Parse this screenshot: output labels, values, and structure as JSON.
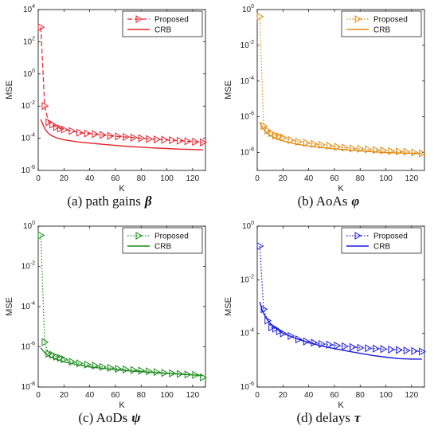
{
  "figure": {
    "captions": [
      {
        "text": "(a) path gains",
        "symbol": "β"
      },
      {
        "text": "(b) AoAs",
        "symbol": "φ"
      },
      {
        "text": "(c) AoDs",
        "symbol": "ψ"
      },
      {
        "text": "(d) delays",
        "symbol": "τ"
      }
    ]
  },
  "chart_data": [
    {
      "type": "line",
      "xlabel": "K",
      "ylabel": "MSE",
      "xlim": [
        0,
        130
      ],
      "ylim": [
        1e-06,
        10000.0
      ],
      "yscale": "log",
      "xticks": [
        "0",
        "20",
        "40",
        "60",
        "80",
        "100",
        "120"
      ],
      "yticks": [
        "10^-6",
        "10^-4",
        "10^-2",
        "10^0",
        "10^2",
        "10^4"
      ],
      "legend_position": "top-right",
      "color": "#e8202a",
      "series": [
        {
          "name": "Proposed",
          "style": "dashed-triangle",
          "x": [
            2,
            5,
            8,
            11,
            14,
            17,
            20,
            26,
            32,
            38,
            44,
            50,
            56,
            62,
            68,
            74,
            80,
            86,
            92,
            98,
            104,
            110,
            116,
            122,
            128
          ],
          "y": [
            800,
            0.01,
            0.001,
            0.0007,
            0.0005,
            0.0004,
            0.00035,
            0.00028,
            0.00022,
            0.0002,
            0.00018,
            0.00016,
            0.00014,
            0.00013,
            0.00012,
            0.00011,
            0.0001,
            9e-05,
            8.5e-05,
            8e-05,
            7.5e-05,
            7e-05,
            6.5e-05,
            6e-05,
            5.5e-05
          ]
        },
        {
          "name": "CRB",
          "style": "solid",
          "x": [
            2,
            4,
            6,
            8,
            10,
            15,
            20,
            30,
            40,
            50,
            60,
            70,
            80,
            90,
            100,
            110,
            120,
            128
          ],
          "y": [
            0.0015,
            0.0006,
            0.0003,
            0.0002,
            0.00015,
            0.0001,
            8e-05,
            6e-05,
            5e-05,
            4.2e-05,
            3.6e-05,
            3.1e-05,
            2.8e-05,
            2.5e-05,
            2.3e-05,
            2.1e-05,
            2e-05,
            1.9e-05
          ]
        }
      ]
    },
    {
      "type": "line",
      "xlabel": "K",
      "ylabel": "MSE",
      "xlim": [
        0,
        130
      ],
      "ylim": [
        1e-09,
        1
      ],
      "yscale": "log",
      "xticks": [
        "0",
        "20",
        "40",
        "60",
        "80",
        "100",
        "120"
      ],
      "yticks": [
        "10^-8",
        "10^-6",
        "10^-4",
        "10^-2",
        "10^0"
      ],
      "legend_position": "top-right",
      "color": "#e08a10",
      "series": [
        {
          "name": "Proposed",
          "style": "dotted-triangle",
          "x": [
            2,
            5,
            8,
            11,
            14,
            17,
            20,
            26,
            32,
            38,
            44,
            50,
            56,
            62,
            68,
            74,
            80,
            86,
            92,
            98,
            104,
            110,
            116,
            122,
            128
          ],
          "y": [
            0.4,
            3e-07,
            1.7e-07,
            1.2e-07,
            9e-08,
            8e-08,
            7e-08,
            5e-08,
            4e-08,
            3.5e-08,
            3e-08,
            2.7e-08,
            2.4e-08,
            2.1e-08,
            1.9e-08,
            1.7e-08,
            1.6e-08,
            1.5e-08,
            1.4e-08,
            1.3e-08,
            1.2e-08,
            1.15e-08,
            1.1e-08,
            1e-08,
            9e-09
          ]
        },
        {
          "name": "CRB",
          "style": "solid",
          "x": [
            2,
            4,
            6,
            8,
            10,
            15,
            20,
            30,
            40,
            50,
            60,
            70,
            80,
            90,
            100,
            110,
            120,
            128
          ],
          "y": [
            5e-07,
            2.5e-07,
            1.6e-07,
            1.2e-07,
            9e-08,
            6e-08,
            4.5e-08,
            3e-08,
            2.3e-08,
            1.9e-08,
            1.6e-08,
            1.4e-08,
            1.25e-08,
            1.1e-08,
            1e-08,
            9.5e-09,
            9e-09,
            8.5e-09
          ]
        }
      ]
    },
    {
      "type": "line",
      "xlabel": "K",
      "ylabel": "MSE",
      "xlim": [
        0,
        130
      ],
      "ylim": [
        1e-08,
        1
      ],
      "yscale": "log",
      "xticks": [
        "0",
        "20",
        "40",
        "60",
        "80",
        "100",
        "120"
      ],
      "yticks": [
        "10^-8",
        "10^-6",
        "10^-4",
        "10^-2",
        "10^0"
      ],
      "legend_position": "top-right",
      "color": "#1a8a1a",
      "series": [
        {
          "name": "Proposed",
          "style": "dotted-triangle",
          "x": [
            2,
            5,
            8,
            11,
            14,
            17,
            20,
            26,
            32,
            38,
            44,
            50,
            56,
            62,
            68,
            74,
            80,
            86,
            92,
            98,
            104,
            110,
            116,
            122,
            128
          ],
          "y": [
            0.35,
            1.7e-06,
            4.5e-07,
            4e-07,
            3.2e-07,
            2.8e-07,
            2.4e-07,
            1.8e-07,
            1.5e-07,
            1.3e-07,
            1.15e-07,
            1e-07,
            9e-08,
            8e-08,
            7.5e-08,
            7e-08,
            6.5e-08,
            6e-08,
            5.5e-08,
            5e-08,
            4.8e-08,
            4.5e-08,
            4.2e-08,
            4e-08,
            3e-08
          ]
        },
        {
          "name": "CRB",
          "style": "solid",
          "x": [
            2,
            4,
            6,
            8,
            10,
            15,
            20,
            30,
            40,
            50,
            60,
            70,
            80,
            90,
            100,
            110,
            120,
            128
          ],
          "y": [
            9e-07,
            6e-07,
            4.5e-07,
            3.6e-07,
            3e-07,
            2.3e-07,
            1.8e-07,
            1.3e-07,
            1e-07,
            8.5e-08,
            7.3e-08,
            6.4e-08,
            5.8e-08,
            5.2e-08,
            4.8e-08,
            4.4e-08,
            4e-08,
            3.8e-08
          ]
        }
      ]
    },
    {
      "type": "line",
      "xlabel": "K",
      "ylabel": "MSE",
      "xlim": [
        0,
        130
      ],
      "ylim": [
        1e-06,
        1
      ],
      "yscale": "log",
      "xticks": [
        "0",
        "20",
        "40",
        "60",
        "80",
        "100",
        "120"
      ],
      "yticks": [
        "10^-6",
        "10^-4",
        "10^-2",
        "10^0"
      ],
      "legend_position": "top-right",
      "color": "#1a1ae0",
      "series": [
        {
          "name": "Proposed",
          "style": "dotted-triangle",
          "x": [
            2,
            5,
            8,
            11,
            14,
            17,
            20,
            26,
            32,
            38,
            44,
            50,
            56,
            62,
            68,
            74,
            80,
            86,
            92,
            98,
            104,
            110,
            116,
            122,
            128
          ],
          "y": [
            0.18,
            0.0008,
            0.0003,
            0.00017,
            0.00015,
            0.00012,
            0.0001,
            8e-05,
            6e-05,
            5e-05,
            4.5e-05,
            4e-05,
            3.8e-05,
            3.5e-05,
            3.3e-05,
            3.1e-05,
            2.9e-05,
            2.8e-05,
            2.7e-05,
            2.6e-05,
            2.5e-05,
            2.4e-05,
            2.3e-05,
            2.2e-05,
            2.1e-05
          ]
        },
        {
          "name": "CRB",
          "style": "solid",
          "x": [
            2,
            4,
            6,
            8,
            10,
            15,
            20,
            30,
            40,
            50,
            60,
            70,
            80,
            90,
            100,
            110,
            120,
            128
          ],
          "y": [
            0.0015,
            0.0007,
            0.00045,
            0.00032,
            0.00024,
            0.00015,
            0.0001,
            6.5e-05,
            4.5e-05,
            3.4e-05,
            2.7e-05,
            2.2e-05,
            1.8e-05,
            1.5e-05,
            1.3e-05,
            1.15e-05,
            1.1e-05,
            1.1e-05
          ]
        }
      ]
    }
  ]
}
